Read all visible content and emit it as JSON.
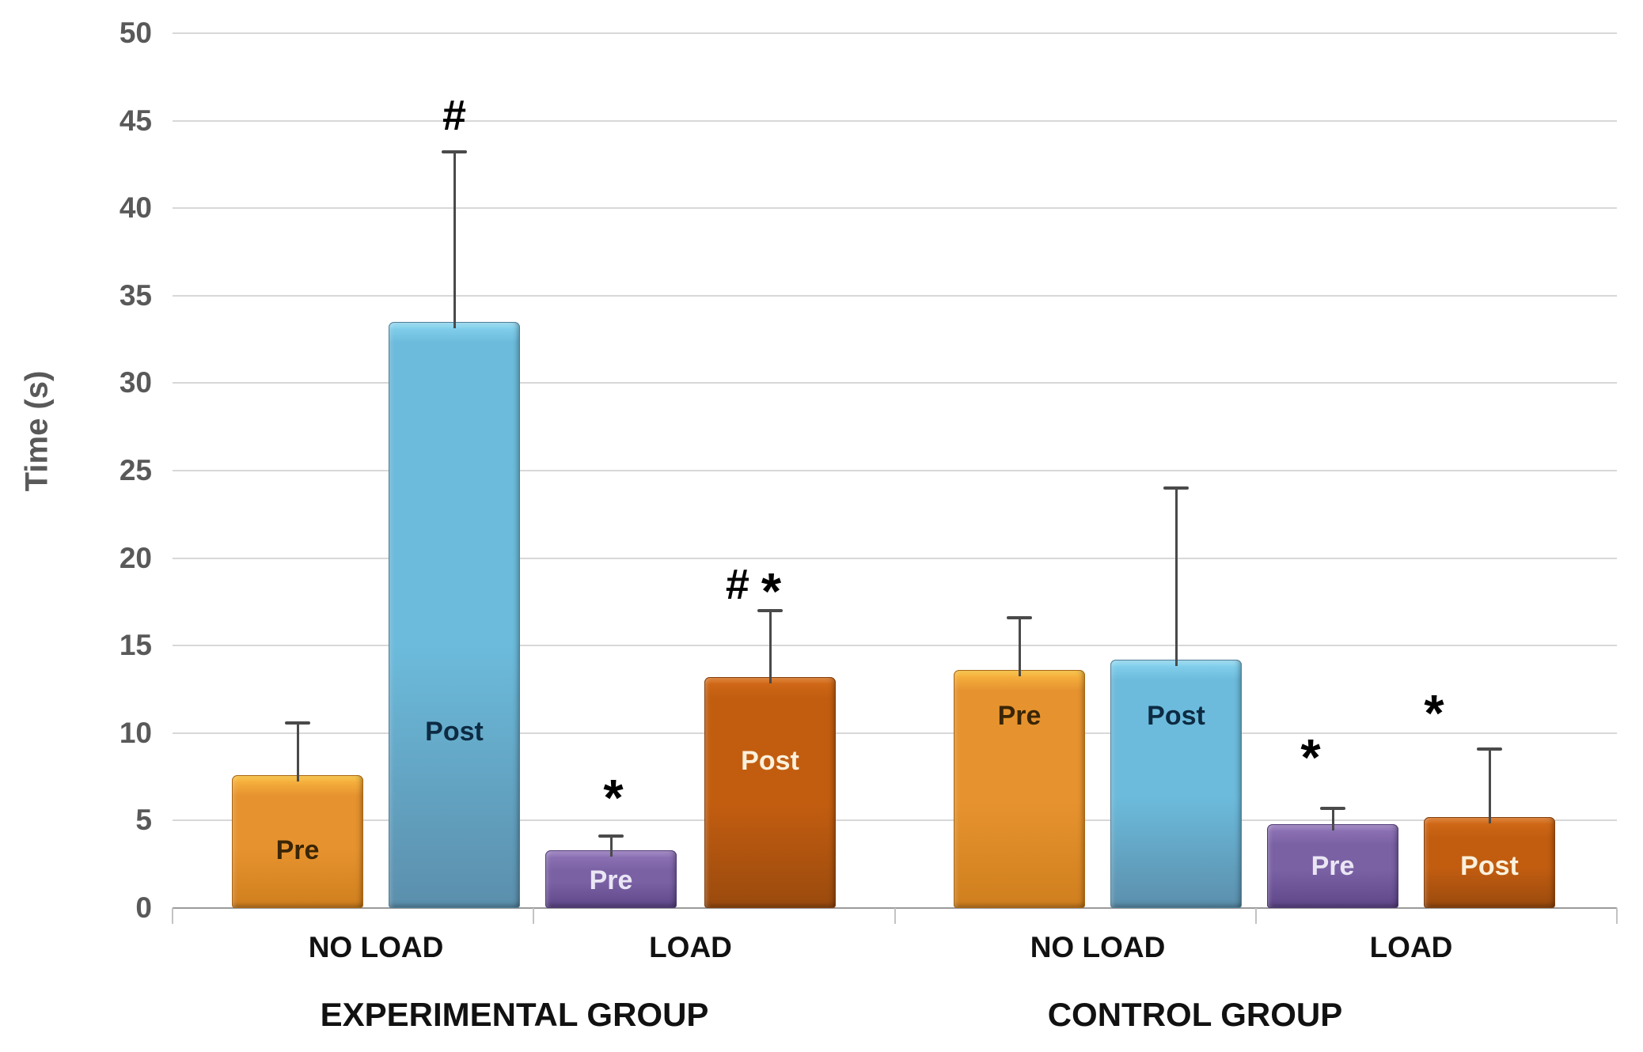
{
  "chart_data": {
    "type": "bar",
    "title": "",
    "xlabel": "",
    "ylabel": "Time (s)",
    "ylim": [
      0,
      50
    ],
    "yticks": [
      0,
      5,
      10,
      15,
      20,
      25,
      30,
      35,
      40,
      45,
      50
    ],
    "grid": true,
    "legend": "none (series labeled inside bars)",
    "series_names": [
      "Pre",
      "Post"
    ],
    "groups": [
      {
        "label": "EXPERIMENTAL GROUP",
        "categories": [
          {
            "label": "NO LOAD",
            "bars": [
              {
                "series": "Pre",
                "value": 7.6,
                "error_top": 10.6,
                "color": "orange",
                "label_v": 3.3,
                "annotation": "",
                "annotation_v": 0,
                "annotation_dx": 0
              },
              {
                "series": "Post",
                "value": 33.5,
                "error_top": 43.2,
                "color": "blue",
                "label_v": 10.1,
                "annotation": "#",
                "annotation_v": 45.3,
                "annotation_dx": 0
              }
            ]
          },
          {
            "label": "LOAD",
            "bars": [
              {
                "series": "Pre",
                "value": 3.3,
                "error_top": 4.1,
                "color": "purple",
                "label_v": 1.6,
                "annotation": "*",
                "annotation_v": 6.8,
                "annotation_dx": 3
              },
              {
                "series": "Post",
                "value": 13.2,
                "error_top": 17.0,
                "color": "brown",
                "label_v": 8.4,
                "annotation": "# *",
                "annotation_v": 18.6,
                "annotation_dx": -21
              }
            ]
          }
        ]
      },
      {
        "label": "CONTROL GROUP",
        "categories": [
          {
            "label": "NO LOAD",
            "bars": [
              {
                "series": "Pre",
                "value": 13.6,
                "error_top": 16.6,
                "color": "orange",
                "label_v": 11.0,
                "annotation": "",
                "annotation_v": 0,
                "annotation_dx": 0
              },
              {
                "series": "Post",
                "value": 14.2,
                "error_top": 24.0,
                "color": "blue",
                "label_v": 11.0,
                "annotation": "",
                "annotation_v": 0,
                "annotation_dx": 0
              }
            ]
          },
          {
            "label": "LOAD",
            "bars": [
              {
                "series": "Pre",
                "value": 4.8,
                "error_top": 5.7,
                "color": "purple",
                "label_v": 2.4,
                "annotation": "*",
                "annotation_v": 9.1,
                "annotation_dx": -28
              },
              {
                "series": "Post",
                "value": 5.2,
                "error_top": 9.1,
                "color": "brown",
                "label_v": 2.4,
                "annotation": "*",
                "annotation_v": 11.6,
                "annotation_dx": -70
              }
            ]
          }
        ]
      }
    ],
    "colors": {
      "orange": {
        "cap": "#FBCD55",
        "cap2": "#F5AE3C",
        "body": "#E6932F",
        "deep": "#D07F1E",
        "edge": "#AA6512",
        "label_color": "#3A2506"
      },
      "blue": {
        "cap": "#A9E3F6",
        "cap2": "#7FCDEA",
        "body": "#6CBBDC",
        "deep": "#5B8FAC",
        "edge": "#4E7E99",
        "label_color": "#0D2B43"
      },
      "purple": {
        "cap": "#AB93CA",
        "cap2": "#8A70B2",
        "body": "#7A61A4",
        "deep": "#5E4689",
        "edge": "#4F3A76",
        "label_color": "#EAE5F4"
      },
      "brown": {
        "cap": "#E48B45",
        "cap2": "#CE6716",
        "body": "#C25D10",
        "deep": "#9A4A0E",
        "edge": "#833E0B",
        "label_color": "#FAF1DC"
      }
    },
    "axis_colors": {
      "grid": "#D8D8D8",
      "baseline": "#9B9B9B",
      "tick_text": "#595959",
      "axis_title": "#595959",
      "category_text": "#111111",
      "annotation": "#000000",
      "error_bar": "#4A4A4A"
    }
  }
}
